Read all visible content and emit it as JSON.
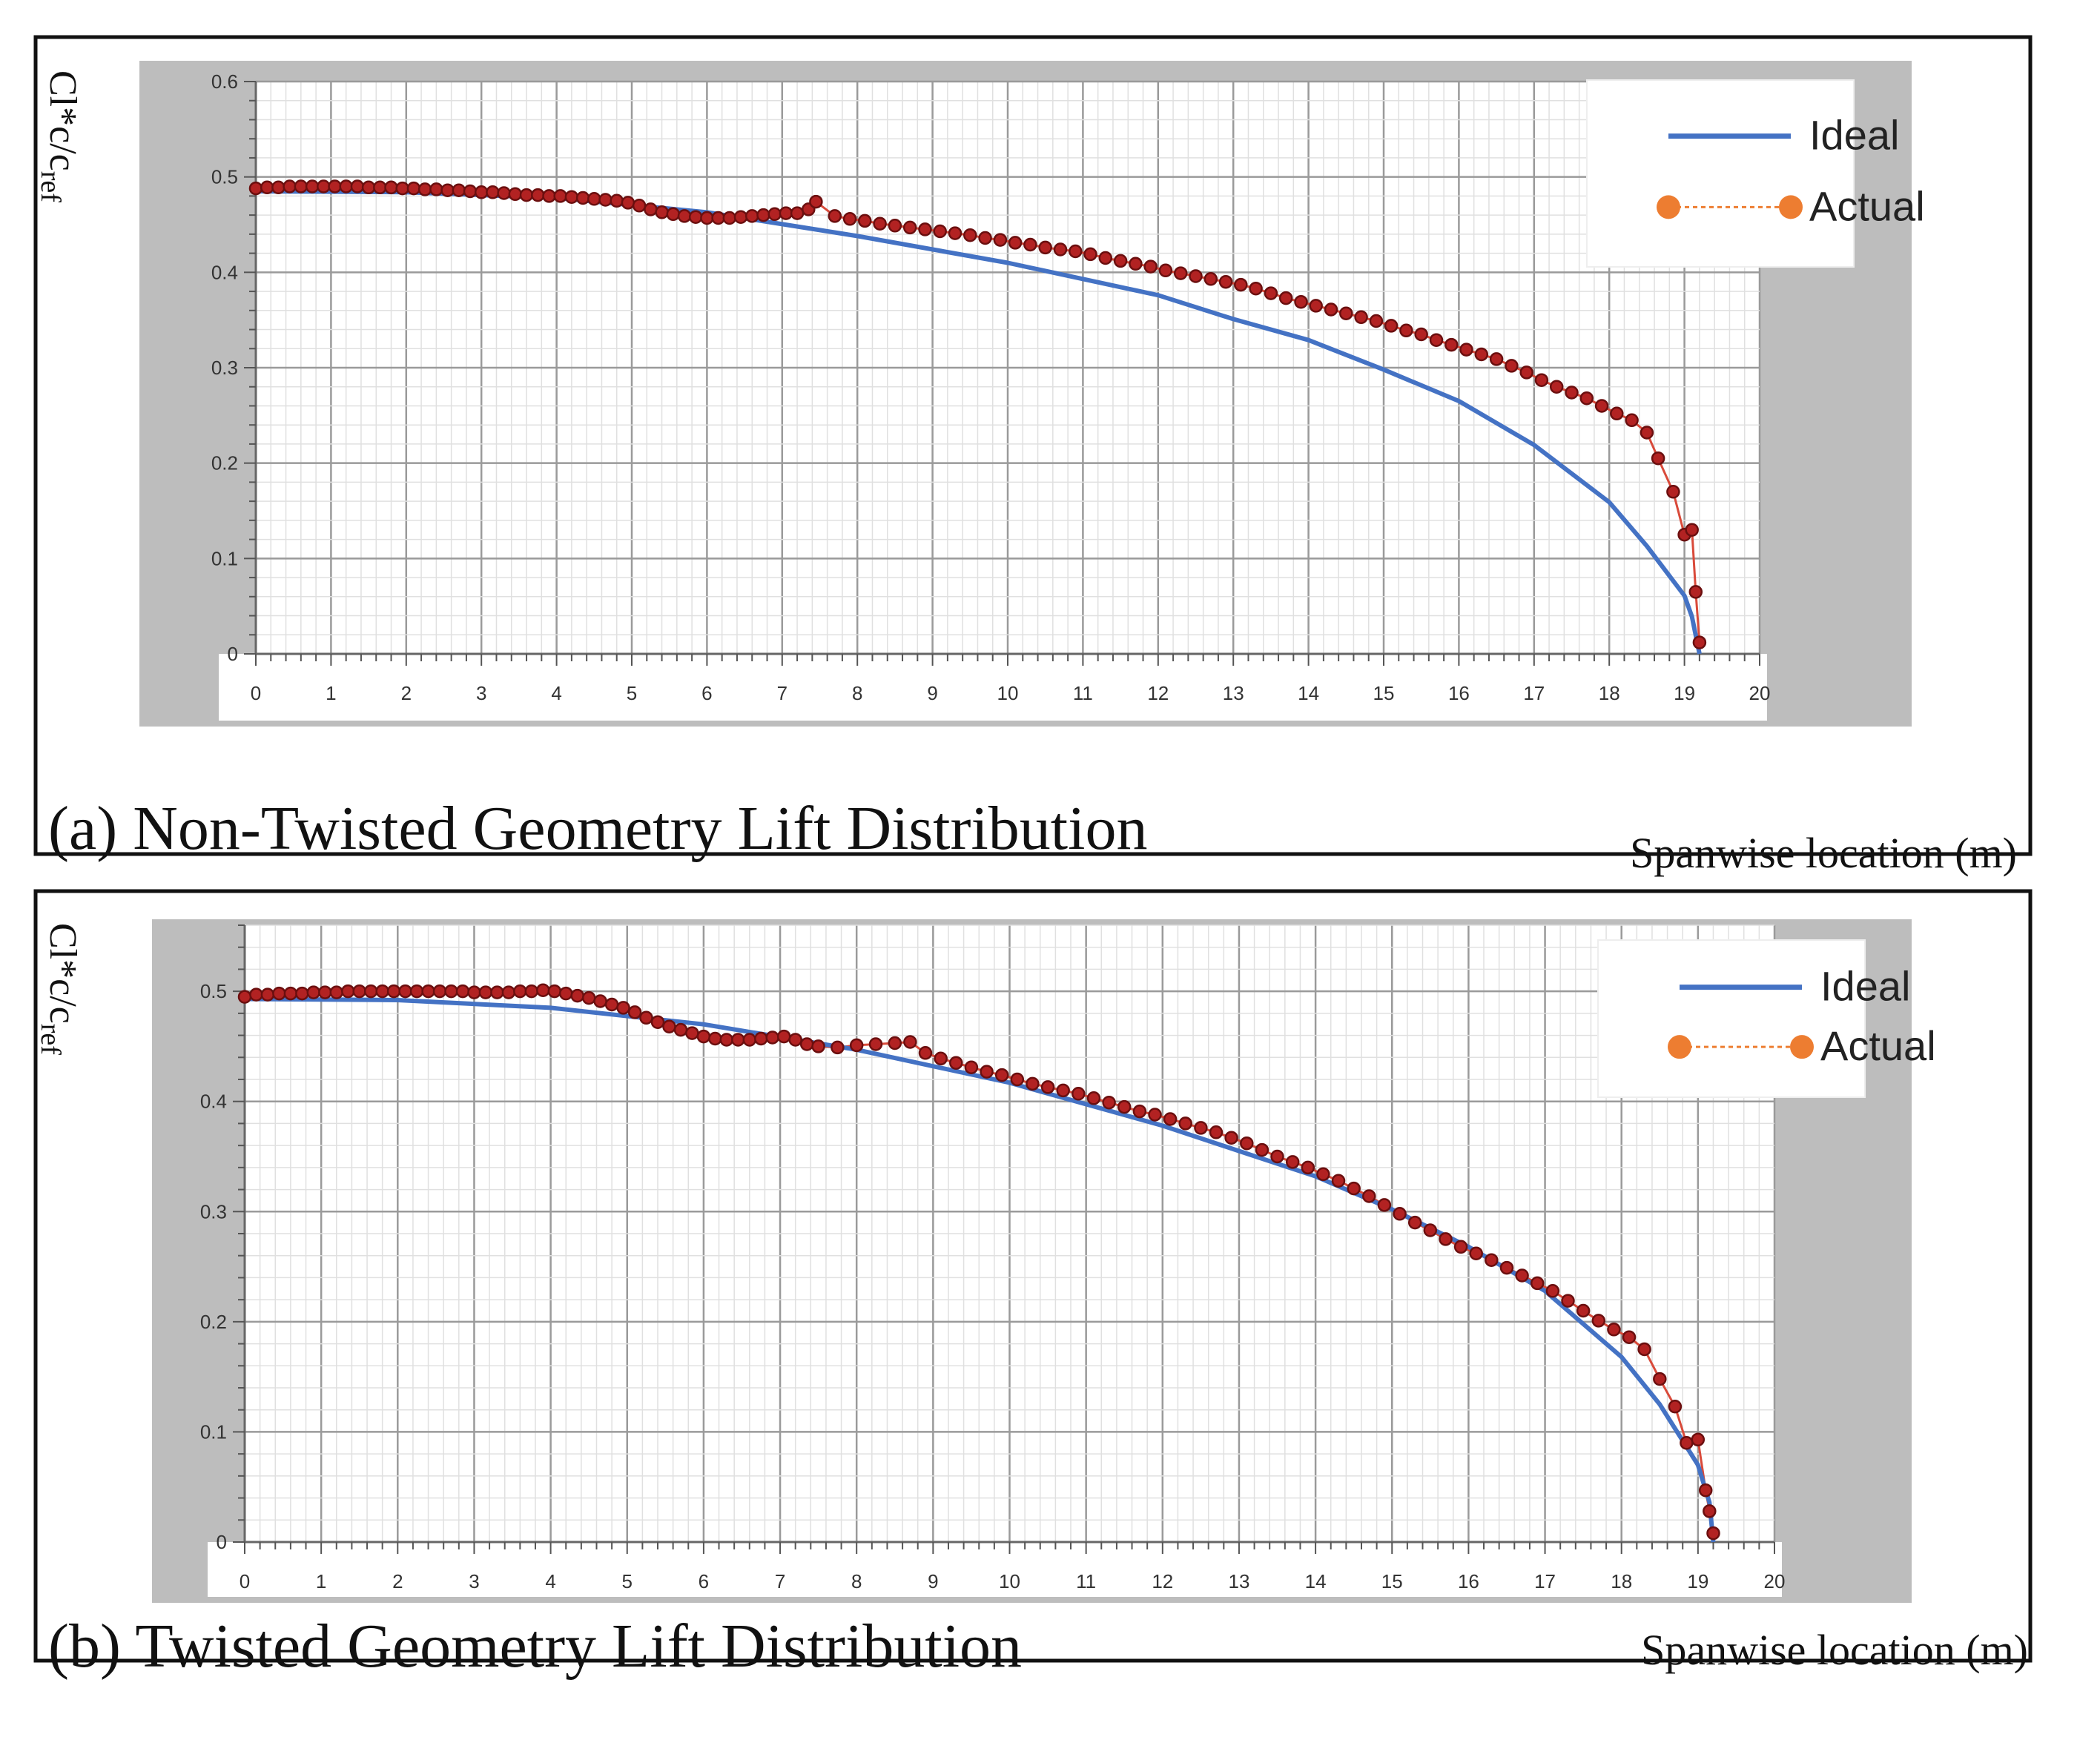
{
  "figure": {
    "colors": {
      "ideal": "#4472C4",
      "actual_marker": "#B22222",
      "actual_marker_stroke": "#6B0F0F",
      "actual_line": "#D94A3A",
      "legend_actual": "#ED7D31",
      "frame_gray": "#BDBDBD",
      "grid_major": "#9A9A9A",
      "grid_minor": "#E0E0E0",
      "border": "#111111"
    }
  },
  "chart_data": [
    {
      "type": "line",
      "caption": "(a) Non-Twisted Geometry Lift Distribution",
      "xlabel": "Spanwise location (m)",
      "ylabel_main": "Cl*c/c",
      "ylabel_sub": "ref",
      "xlim": [
        0,
        20
      ],
      "ylim": [
        0,
        0.6
      ],
      "xticks": [
        0,
        1,
        2,
        3,
        4,
        5,
        6,
        7,
        8,
        9,
        10,
        11,
        12,
        13,
        14,
        15,
        16,
        17,
        18,
        19,
        20
      ],
      "yticks": [
        0,
        0.1,
        0.2,
        0.3,
        0.4,
        0.5,
        0.6
      ],
      "ytick_labels": [
        "0",
        "0.1",
        "0.2",
        "0.3",
        "0.4",
        "0.5",
        "0.6"
      ],
      "grid": true,
      "legend": {
        "position": "top-right",
        "entries": [
          "Ideal",
          "Actual"
        ]
      },
      "series": [
        {
          "name": "Ideal",
          "style": "solid-line",
          "x": [
            0,
            2,
            4,
            6,
            8,
            10,
            12,
            13,
            14,
            15,
            16,
            17,
            18,
            18.5,
            19,
            19.1,
            19.2
          ],
          "y": [
            0.485,
            0.484,
            0.478,
            0.463,
            0.438,
            0.41,
            0.376,
            0.351,
            0.329,
            0.298,
            0.265,
            0.219,
            0.159,
            0.113,
            0.061,
            0.039,
            0
          ]
        },
        {
          "name": "Actual",
          "style": "dotted-line-markers",
          "x": [
            0,
            0.15,
            0.3,
            0.45,
            0.6,
            0.75,
            0.9,
            1.05,
            1.2,
            1.35,
            1.5,
            1.65,
            1.8,
            1.95,
            2.1,
            2.25,
            2.4,
            2.55,
            2.7,
            2.85,
            3.0,
            3.15,
            3.3,
            3.45,
            3.6,
            3.75,
            3.9,
            4.05,
            4.2,
            4.35,
            4.5,
            4.65,
            4.8,
            4.95,
            5.1,
            5.25,
            5.4,
            5.55,
            5.7,
            5.85,
            6.0,
            6.15,
            6.3,
            6.45,
            6.6,
            6.75,
            6.9,
            7.05,
            7.2,
            7.35,
            7.45,
            7.7,
            7.9,
            8.1,
            8.3,
            8.5,
            8.7,
            8.9,
            9.1,
            9.3,
            9.5,
            9.7,
            9.9,
            10.1,
            10.3,
            10.5,
            10.7,
            10.9,
            11.1,
            11.3,
            11.5,
            11.7,
            11.9,
            12.1,
            12.3,
            12.5,
            12.7,
            12.9,
            13.1,
            13.3,
            13.5,
            13.7,
            13.9,
            14.1,
            14.3,
            14.5,
            14.7,
            14.9,
            15.1,
            15.3,
            15.5,
            15.7,
            15.9,
            16.1,
            16.3,
            16.5,
            16.7,
            16.9,
            17.1,
            17.3,
            17.5,
            17.7,
            17.9,
            18.1,
            18.3,
            18.5,
            18.65,
            18.85,
            19.0,
            19.1,
            19.15,
            19.2
          ],
          "y": [
            0.488,
            0.489,
            0.489,
            0.49,
            0.49,
            0.49,
            0.49,
            0.49,
            0.49,
            0.49,
            0.489,
            0.489,
            0.489,
            0.488,
            0.488,
            0.487,
            0.487,
            0.486,
            0.486,
            0.485,
            0.484,
            0.484,
            0.483,
            0.482,
            0.481,
            0.481,
            0.48,
            0.48,
            0.479,
            0.478,
            0.477,
            0.476,
            0.475,
            0.473,
            0.47,
            0.466,
            0.463,
            0.461,
            0.459,
            0.458,
            0.457,
            0.457,
            0.457,
            0.458,
            0.459,
            0.46,
            0.461,
            0.462,
            0.462,
            0.466,
            0.474,
            0.459,
            0.456,
            0.454,
            0.451,
            0.449,
            0.447,
            0.445,
            0.443,
            0.441,
            0.439,
            0.436,
            0.434,
            0.431,
            0.429,
            0.426,
            0.424,
            0.422,
            0.419,
            0.415,
            0.412,
            0.409,
            0.406,
            0.402,
            0.399,
            0.396,
            0.393,
            0.39,
            0.387,
            0.383,
            0.378,
            0.373,
            0.369,
            0.365,
            0.361,
            0.357,
            0.353,
            0.349,
            0.344,
            0.339,
            0.335,
            0.329,
            0.324,
            0.319,
            0.314,
            0.309,
            0.302,
            0.295,
            0.287,
            0.28,
            0.274,
            0.268,
            0.26,
            0.252,
            0.245,
            0.232,
            0.205,
            0.17,
            0.125,
            0.13,
            0.065,
            0.012
          ]
        }
      ]
    },
    {
      "type": "line",
      "caption": "(b) Twisted Geometry Lift Distribution",
      "xlabel": "Spanwise location (m)",
      "ylabel_main": "Cl*c/c",
      "ylabel_sub": "ref",
      "xlim": [
        0,
        20
      ],
      "ylim": [
        0,
        0.56
      ],
      "xticks": [
        0,
        1,
        2,
        3,
        4,
        5,
        6,
        7,
        8,
        9,
        10,
        11,
        12,
        13,
        14,
        15,
        16,
        17,
        18,
        19,
        20
      ],
      "yticks": [
        0,
        0.1,
        0.2,
        0.3,
        0.4,
        0.5
      ],
      "ytick_labels": [
        "0",
        "0.1",
        "0.2",
        "0.3",
        "0.4",
        "0.5"
      ],
      "grid": true,
      "legend": {
        "position": "top-right",
        "entries": [
          "Ideal",
          "Actual"
        ]
      },
      "series": [
        {
          "name": "Ideal",
          "style": "solid-line",
          "x": [
            0,
            2,
            4,
            6,
            8,
            10,
            12,
            13,
            14,
            15,
            16,
            17,
            18,
            18.5,
            19,
            19.15,
            19.2
          ],
          "y": [
            0.493,
            0.492,
            0.485,
            0.47,
            0.447,
            0.417,
            0.378,
            0.355,
            0.332,
            0.302,
            0.268,
            0.228,
            0.168,
            0.125,
            0.07,
            0.036,
            0
          ]
        },
        {
          "name": "Actual",
          "style": "dotted-line-markers",
          "x": [
            0,
            0.15,
            0.3,
            0.45,
            0.6,
            0.75,
            0.9,
            1.05,
            1.2,
            1.35,
            1.5,
            1.65,
            1.8,
            1.95,
            2.1,
            2.25,
            2.4,
            2.55,
            2.7,
            2.85,
            3.0,
            3.15,
            3.3,
            3.45,
            3.6,
            3.75,
            3.9,
            4.05,
            4.2,
            4.35,
            4.5,
            4.65,
            4.8,
            4.95,
            5.1,
            5.25,
            5.4,
            5.55,
            5.7,
            5.85,
            6.0,
            6.15,
            6.3,
            6.45,
            6.6,
            6.75,
            6.9,
            7.05,
            7.2,
            7.35,
            7.5,
            7.75,
            8.0,
            8.25,
            8.5,
            8.7,
            8.9,
            9.1,
            9.3,
            9.5,
            9.7,
            9.9,
            10.1,
            10.3,
            10.5,
            10.7,
            10.9,
            11.1,
            11.3,
            11.5,
            11.7,
            11.9,
            12.1,
            12.3,
            12.5,
            12.7,
            12.9,
            13.1,
            13.3,
            13.5,
            13.7,
            13.9,
            14.1,
            14.3,
            14.5,
            14.7,
            14.9,
            15.1,
            15.3,
            15.5,
            15.7,
            15.9,
            16.1,
            16.3,
            16.5,
            16.7,
            16.9,
            17.1,
            17.3,
            17.5,
            17.7,
            17.9,
            18.1,
            18.3,
            18.5,
            18.7,
            18.85,
            19.0,
            19.1,
            19.15,
            19.2
          ],
          "y": [
            0.495,
            0.497,
            0.497,
            0.498,
            0.498,
            0.498,
            0.499,
            0.499,
            0.499,
            0.5,
            0.5,
            0.5,
            0.5,
            0.5,
            0.5,
            0.5,
            0.5,
            0.5,
            0.5,
            0.5,
            0.499,
            0.499,
            0.499,
            0.499,
            0.5,
            0.5,
            0.501,
            0.5,
            0.498,
            0.496,
            0.494,
            0.491,
            0.488,
            0.485,
            0.481,
            0.476,
            0.472,
            0.468,
            0.465,
            0.462,
            0.459,
            0.457,
            0.456,
            0.456,
            0.456,
            0.457,
            0.458,
            0.459,
            0.456,
            0.452,
            0.45,
            0.449,
            0.451,
            0.452,
            0.453,
            0.454,
            0.444,
            0.439,
            0.435,
            0.431,
            0.427,
            0.424,
            0.42,
            0.416,
            0.413,
            0.41,
            0.407,
            0.403,
            0.399,
            0.395,
            0.391,
            0.388,
            0.384,
            0.38,
            0.376,
            0.372,
            0.367,
            0.362,
            0.356,
            0.35,
            0.345,
            0.34,
            0.334,
            0.328,
            0.321,
            0.314,
            0.306,
            0.298,
            0.29,
            0.283,
            0.275,
            0.268,
            0.262,
            0.256,
            0.249,
            0.242,
            0.235,
            0.228,
            0.219,
            0.21,
            0.201,
            0.193,
            0.186,
            0.175,
            0.148,
            0.123,
            0.09,
            0.093,
            0.047,
            0.028,
            0.008
          ]
        }
      ]
    }
  ]
}
